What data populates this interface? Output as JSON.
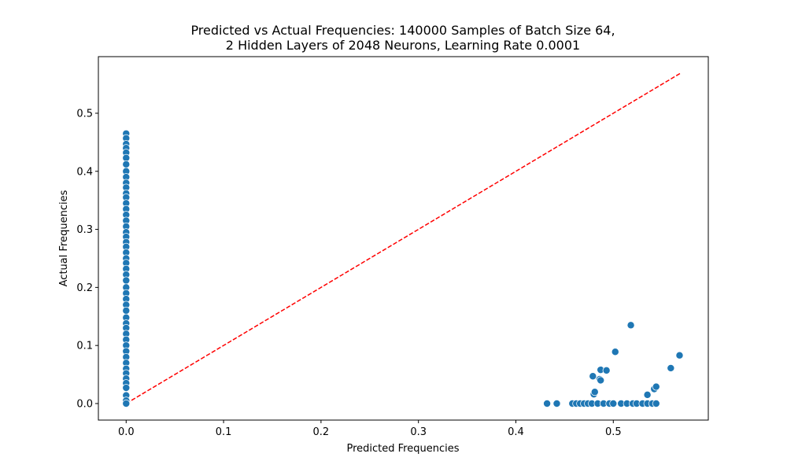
{
  "chart_data": {
    "type": "scatter",
    "title": "Predicted vs Actual Frequencies: 140000 Samples of Batch Size 64,",
    "subtitle": "2 Hidden Layers of 2048 Neurons, Learning Rate 0.0001",
    "xlabel": "Predicted Frequencies",
    "ylabel": "Actual Frequencies",
    "xlim": [
      -0.0285,
      0.5975
    ],
    "ylim": [
      -0.0285,
      0.5975
    ],
    "xticks": [
      0.0,
      0.1,
      0.2,
      0.3,
      0.4,
      0.5
    ],
    "yticks": [
      0.0,
      0.1,
      0.2,
      0.3,
      0.4,
      0.5
    ],
    "xtick_labels": [
      "0.0",
      "0.1",
      "0.2",
      "0.3",
      "0.4",
      "0.5"
    ],
    "ytick_labels": [
      "0.0",
      "0.1",
      "0.2",
      "0.3",
      "0.4",
      "0.5"
    ],
    "grid": false,
    "legend": "none",
    "colors": {
      "points": "#1f77b4",
      "point_edge": "#ffffff",
      "reference_line": "#ff0000"
    },
    "reference_line": {
      "style": "dashed",
      "points": [
        [
          0.0,
          0.0
        ],
        [
          0.57,
          0.57
        ]
      ]
    },
    "points": [
      [
        0.0,
        0.465
      ],
      [
        0.0,
        0.457
      ],
      [
        0.0,
        0.447
      ],
      [
        0.0,
        0.44
      ],
      [
        0.0,
        0.432
      ],
      [
        0.0,
        0.423
      ],
      [
        0.0,
        0.412
      ],
      [
        0.0,
        0.4
      ],
      [
        0.0,
        0.39
      ],
      [
        0.0,
        0.38
      ],
      [
        0.0,
        0.372
      ],
      [
        0.0,
        0.362
      ],
      [
        0.0,
        0.355
      ],
      [
        0.0,
        0.345
      ],
      [
        0.0,
        0.335
      ],
      [
        0.0,
        0.325
      ],
      [
        0.0,
        0.315
      ],
      [
        0.0,
        0.305
      ],
      [
        0.0,
        0.295
      ],
      [
        0.0,
        0.287
      ],
      [
        0.0,
        0.278
      ],
      [
        0.0,
        0.27
      ],
      [
        0.0,
        0.26
      ],
      [
        0.0,
        0.25
      ],
      [
        0.0,
        0.242
      ],
      [
        0.0,
        0.232
      ],
      [
        0.0,
        0.222
      ],
      [
        0.0,
        0.212
      ],
      [
        0.0,
        0.2
      ],
      [
        0.0,
        0.19
      ],
      [
        0.0,
        0.18
      ],
      [
        0.0,
        0.17
      ],
      [
        0.0,
        0.16
      ],
      [
        0.0,
        0.148
      ],
      [
        0.0,
        0.138
      ],
      [
        0.0,
        0.13
      ],
      [
        0.0,
        0.12
      ],
      [
        0.0,
        0.11
      ],
      [
        0.0,
        0.1
      ],
      [
        0.0,
        0.09
      ],
      [
        0.0,
        0.08
      ],
      [
        0.0,
        0.07
      ],
      [
        0.0,
        0.06
      ],
      [
        0.0,
        0.052
      ],
      [
        0.0,
        0.043
      ],
      [
        0.0,
        0.035
      ],
      [
        0.0,
        0.027
      ],
      [
        0.0,
        0.014
      ],
      [
        0.0,
        0.005
      ],
      [
        0.0,
        0.0
      ],
      [
        0.432,
        0.0
      ],
      [
        0.442,
        0.0
      ],
      [
        0.458,
        0.0
      ],
      [
        0.462,
        0.0
      ],
      [
        0.466,
        0.0
      ],
      [
        0.47,
        0.0
      ],
      [
        0.474,
        0.0
      ],
      [
        0.478,
        0.0
      ],
      [
        0.484,
        0.0
      ],
      [
        0.49,
        0.0
      ],
      [
        0.496,
        0.0
      ],
      [
        0.5,
        0.0
      ],
      [
        0.508,
        0.0
      ],
      [
        0.514,
        0.0
      ],
      [
        0.52,
        0.0
      ],
      [
        0.524,
        0.0
      ],
      [
        0.53,
        0.0
      ],
      [
        0.535,
        0.0
      ],
      [
        0.54,
        0.0
      ],
      [
        0.544,
        0.0
      ],
      [
        0.479,
        0.047
      ],
      [
        0.48,
        0.016
      ],
      [
        0.481,
        0.02
      ],
      [
        0.486,
        0.042
      ],
      [
        0.487,
        0.04
      ],
      [
        0.487,
        0.058
      ],
      [
        0.493,
        0.057
      ],
      [
        0.502,
        0.089
      ],
      [
        0.518,
        0.135
      ],
      [
        0.535,
        0.015
      ],
      [
        0.542,
        0.025
      ],
      [
        0.544,
        0.029
      ],
      [
        0.559,
        0.061
      ],
      [
        0.568,
        0.083
      ]
    ]
  }
}
